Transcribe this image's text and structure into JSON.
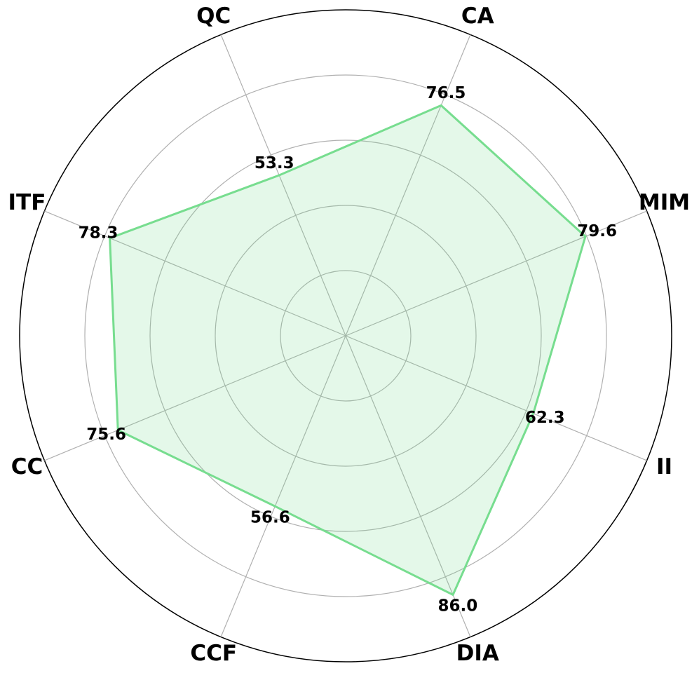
{
  "chart_data": {
    "type": "radar",
    "categories": [
      "CA",
      "MIM",
      "II",
      "DIA",
      "CCF",
      "CC",
      "ITF",
      "QC"
    ],
    "series": [
      {
        "color": "#77dd8f",
        "values": [
          76.5,
          79.6,
          62.3,
          86.0,
          56.6,
          75.6,
          78.3,
          53.3
        ],
        "value_labels": [
          "76.5",
          "79.6",
          "62.3",
          "86.0",
          "56.6",
          "75.6",
          "78.3",
          "53.3"
        ]
      }
    ],
    "ylim": [
      0,
      100
    ],
    "yticks": [
      20,
      40,
      60,
      80,
      100
    ],
    "grid": true
  }
}
